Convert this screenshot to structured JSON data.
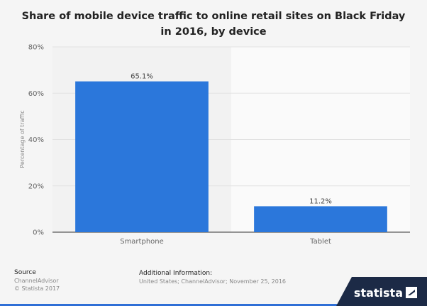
{
  "title": "Share of mobile device traffic to online retail sites on Black Friday in 2016, by device",
  "chart_data": {
    "type": "bar",
    "categories": [
      "Smartphone",
      "Tablet"
    ],
    "values": [
      65.1,
      11.2
    ],
    "value_labels": [
      "65.1%",
      "11.2%"
    ],
    "ylabel": "Percentage of traffic",
    "ylim": [
      0,
      80
    ],
    "yticks": [
      0,
      20,
      40,
      60,
      80
    ],
    "ytick_labels": [
      "0%",
      "20%",
      "40%",
      "60%",
      "80%"
    ],
    "grid": true,
    "bar_color": "#2b77db"
  },
  "footer": {
    "source_title": "Source",
    "source_lines": [
      "ChannelAdvisor",
      "© Statista 2017"
    ],
    "info_title": "Additional Information:",
    "info_text": "United States; ChannelAdvisor; November 25, 2016"
  },
  "brand": {
    "name": "statista",
    "color": "#1c2a46",
    "accent": "#2f6fd6"
  }
}
